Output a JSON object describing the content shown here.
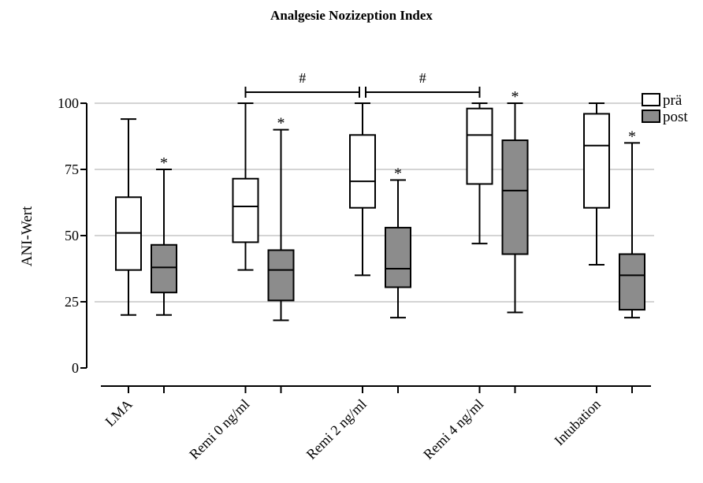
{
  "chart_data": {
    "type": "box",
    "title": "Analgesie Nozizeption Index",
    "ylabel": "ANI-Wert",
    "xlabel": "",
    "ylim": [
      0,
      100
    ],
    "yticks": [
      0,
      25,
      50,
      75,
      100
    ],
    "grid": "horizontal",
    "legend": {
      "placement": "top-right",
      "entries": [
        {
          "label": "prä",
          "color": "#ffffff"
        },
        {
          "label": "post",
          "color": "#8c8c8c"
        }
      ]
    },
    "categories": [
      "LMA",
      "Remi 0 ng/ml",
      "Remi 2 ng/ml",
      "Remi 4 ng/ml",
      "Intubation"
    ],
    "series": [
      {
        "name": "prä",
        "color": "#ffffff",
        "boxes": [
          {
            "min": 20,
            "q1": 37,
            "median": 51,
            "q3": 64.5,
            "max": 94,
            "marker": ""
          },
          {
            "min": 37,
            "q1": 47.5,
            "median": 61,
            "q3": 71.5,
            "max": 100,
            "marker": ""
          },
          {
            "min": 35,
            "q1": 60.5,
            "median": 70.5,
            "q3": 88,
            "max": 100,
            "marker": ""
          },
          {
            "min": 47,
            "q1": 69.5,
            "median": 88,
            "q3": 98,
            "max": 100,
            "marker": ""
          },
          {
            "min": 39,
            "q1": 60.5,
            "median": 84,
            "q3": 96,
            "max": 100,
            "marker": ""
          }
        ]
      },
      {
        "name": "post",
        "color": "#8c8c8c",
        "boxes": [
          {
            "min": 20,
            "q1": 28.5,
            "median": 38,
            "q3": 46.5,
            "max": 75,
            "marker": "*"
          },
          {
            "min": 18,
            "q1": 25.5,
            "median": 37,
            "q3": 44.5,
            "max": 90,
            "marker": "*"
          },
          {
            "min": 19,
            "q1": 30.5,
            "median": 37.5,
            "q3": 53,
            "max": 71,
            "marker": "*"
          },
          {
            "min": 21,
            "q1": 43,
            "median": 67,
            "q3": 86,
            "max": 100,
            "marker": "*"
          },
          {
            "min": 19,
            "q1": 22,
            "median": 35,
            "q3": 43,
            "max": 85,
            "marker": "*"
          }
        ]
      }
    ],
    "brackets": [
      {
        "from_category": 1,
        "to_category": 2,
        "label": "#"
      },
      {
        "from_category": 2,
        "to_category": 3,
        "label": "#"
      }
    ]
  }
}
